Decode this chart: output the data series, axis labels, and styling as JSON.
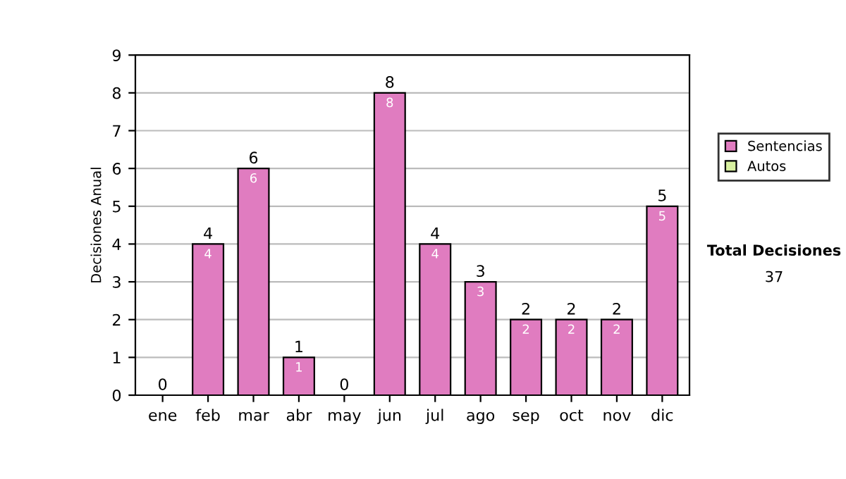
{
  "chart_data": {
    "type": "bar",
    "ylabel": "Decisiones Anual",
    "categories": [
      "ene",
      "feb",
      "mar",
      "abr",
      "may",
      "jun",
      "jul",
      "ago",
      "sep",
      "oct",
      "nov",
      "dic"
    ],
    "stacked": true,
    "series": [
      {
        "name": "Sentencias",
        "color": "#e07cc0",
        "values": [
          0,
          4,
          6,
          1,
          0,
          8,
          4,
          3,
          2,
          2,
          2,
          5
        ],
        "value_labels": [
          null,
          "4",
          "6",
          "1",
          null,
          "8",
          "4",
          "3",
          "2",
          "2",
          "2",
          "5"
        ]
      },
      {
        "name": "Autos",
        "color": "#d8f0a0",
        "values": [
          0,
          0,
          0,
          0,
          0,
          0,
          0,
          0,
          0,
          0,
          0,
          0
        ]
      }
    ],
    "totals": [
      "0",
      "4",
      "6",
      "1",
      "0",
      "8",
      "4",
      "3",
      "2",
      "2",
      "2",
      "5"
    ],
    "ylim": [
      0,
      9
    ],
    "yticks": [
      0,
      1,
      2,
      3,
      4,
      5,
      6,
      7,
      8,
      9
    ],
    "grid": "y",
    "legend": "right",
    "annotations": [
      "Total Decisiones",
      "37"
    ]
  }
}
